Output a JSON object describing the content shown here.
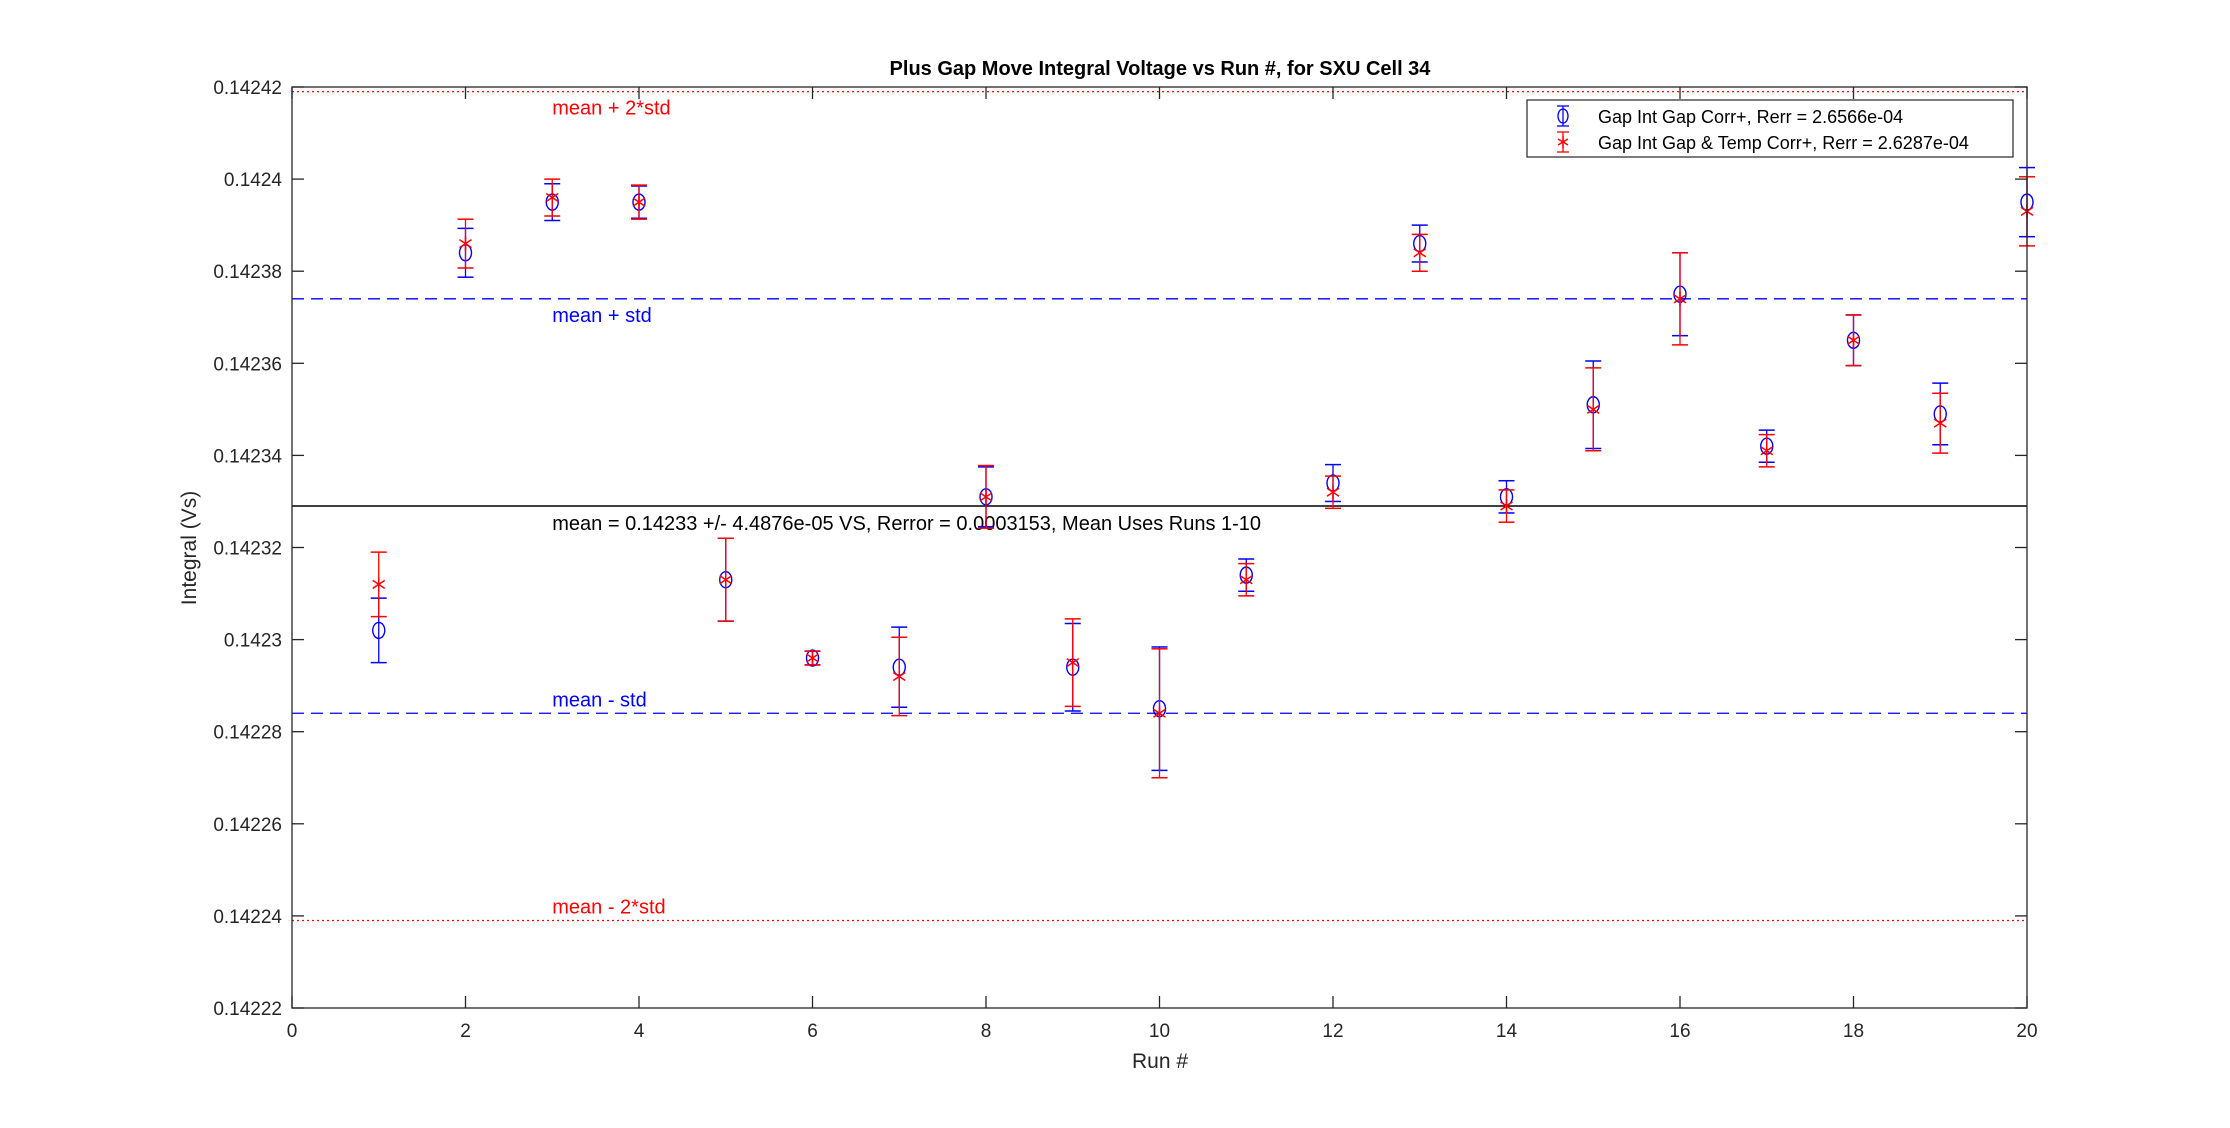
{
  "chart_data": {
    "type": "scatter",
    "title": "Plus Gap Move Integral Voltage vs Run #, for SXU Cell 34",
    "xlabel": "Run #",
    "ylabel": "Integral (Vs)",
    "xlim": [
      0,
      20
    ],
    "ylim": [
      0.14222,
      0.14242
    ],
    "xticks": [
      "0",
      "2",
      "4",
      "6",
      "8",
      "10",
      "12",
      "14",
      "16",
      "18",
      "20"
    ],
    "yticks": [
      "0.14222",
      "0.14224",
      "0.14226",
      "0.14228",
      "0.1423",
      "0.14232",
      "0.14234",
      "0.14236",
      "0.14238",
      "0.1424",
      "0.14242"
    ],
    "grid": false,
    "legend_position": "top-right",
    "x": [
      1,
      2,
      3,
      4,
      5,
      6,
      7,
      8,
      9,
      10,
      11,
      12,
      13,
      14,
      15,
      16,
      17,
      18,
      19,
      20
    ],
    "series": [
      {
        "name": "Gap Int Gap Corr+, Rerr = 2.6566e-04",
        "marker": "circle",
        "color": "#0000ff",
        "values": [
          0.142302,
          0.142384,
          0.142395,
          0.142395,
          0.142313,
          0.142296,
          0.142294,
          0.142331,
          0.142294,
          0.142285,
          0.142314,
          0.142334,
          0.142386,
          0.142331,
          0.142351,
          0.142375,
          0.142342,
          0.142365,
          0.142349,
          0.142395
        ],
        "errors": [
          7e-06,
          5.3e-06,
          4e-06,
          3.5e-06,
          9e-06,
          1.5e-06,
          8.7e-06,
          6.5e-06,
          9.5e-06,
          1.34e-05,
          3.5e-06,
          4e-06,
          4e-06,
          3.5e-06,
          9.5e-06,
          9e-06,
          3.5e-06,
          5.5e-06,
          6.7e-06,
          7.5e-06
        ]
      },
      {
        "name": "Gap Int Gap & Temp  Corr+, Rerr = 2.6287e-04",
        "marker": "asterisk",
        "color": "#ff0000",
        "values": [
          0.142312,
          0.142386,
          0.142396,
          0.142395,
          0.142313,
          0.142296,
          0.142292,
          0.142331,
          0.142295,
          0.142284,
          0.142313,
          0.142332,
          0.142384,
          0.142329,
          0.14235,
          0.142374,
          0.142341,
          0.142365,
          0.142347,
          0.142393
        ],
        "errors": [
          7e-06,
          5.3e-06,
          4e-06,
          3.7e-06,
          9e-06,
          1.5e-06,
          8.5e-06,
          6.8e-06,
          9.5e-06,
          1.4e-05,
          3.5e-06,
          3.5e-06,
          4e-06,
          3.5e-06,
          9e-06,
          1e-05,
          3.5e-06,
          5.5e-06,
          6.5e-06,
          7.5e-06
        ]
      }
    ],
    "reference_lines": [
      {
        "label": "mean + 2*std",
        "value": 0.142419,
        "style": "dotted",
        "color": "#ff0000"
      },
      {
        "label": "mean + std",
        "value": 0.142374,
        "style": "dashed",
        "color": "#0000ff"
      },
      {
        "label": "mean = 0.14233 +/- 4.4876e-05 VS, Rerror = 0.0003153, Mean Uses Runs 1-10",
        "value": 0.142329,
        "style": "solid",
        "color": "#000000"
      },
      {
        "label": "mean - std",
        "value": 0.142284,
        "style": "dashed",
        "color": "#0000ff"
      },
      {
        "label": "mean - 2*std",
        "value": 0.142239,
        "style": "dotted",
        "color": "#ff0000"
      }
    ]
  }
}
